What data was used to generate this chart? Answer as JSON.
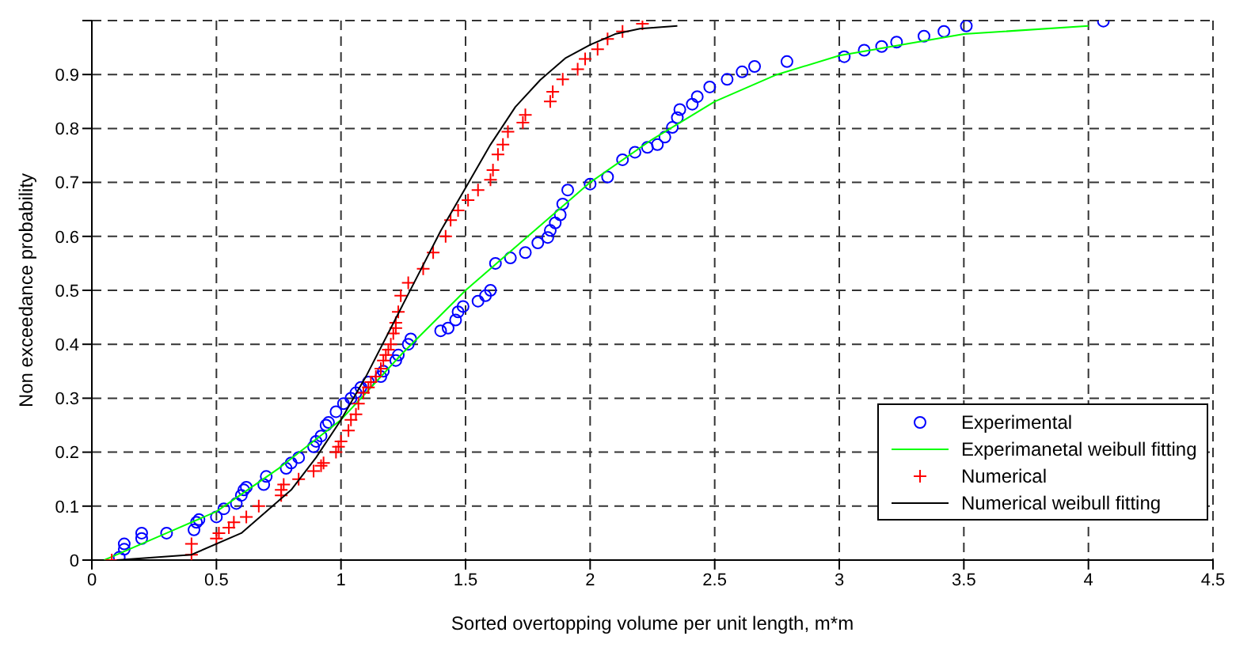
{
  "chart_data": {
    "type": "scatter",
    "xlabel": "Sorted overtopping volume per unit length, m*m",
    "ylabel": "Non exceedance probability",
    "xlim": [
      0,
      4.5
    ],
    "xticks": [
      0,
      0.5,
      1,
      1.5,
      2,
      2.5,
      3,
      3.5,
      4,
      4.5
    ],
    "ylim": [
      0,
      1
    ],
    "yticks": [
      0,
      0.1,
      0.2,
      0.3,
      0.4,
      0.5,
      0.6,
      0.7,
      0.8,
      0.9,
      {
        "value": 1,
        "label": null
      }
    ],
    "grid": true,
    "legend": "bottom right",
    "series": [
      {
        "name": "Experimental",
        "type": "scatter",
        "marker": "circle",
        "color": "#0000ff",
        "x": [
          0.11,
          0.13,
          0.13,
          0.2,
          0.2,
          0.3,
          0.41,
          0.42,
          0.43,
          0.5,
          0.53,
          0.58,
          0.6,
          0.61,
          0.62,
          0.69,
          0.7,
          0.78,
          0.8,
          0.83,
          0.89,
          0.9,
          0.92,
          0.94,
          0.95,
          0.98,
          1.01,
          1.04,
          1.06,
          1.08,
          1.11,
          1.16,
          1.17,
          1.22,
          1.23,
          1.27,
          1.28,
          1.4,
          1.43,
          1.46,
          1.47,
          1.49,
          1.55,
          1.58,
          1.6,
          1.62,
          1.68,
          1.74,
          1.79,
          1.83,
          1.84,
          1.86,
          1.88,
          1.89,
          1.91,
          2.0,
          2.07,
          2.13,
          2.18,
          2.23,
          2.27,
          2.3,
          2.33,
          2.35,
          2.36,
          2.41,
          2.43,
          2.48,
          2.55,
          2.61,
          2.66,
          2.79,
          3.02,
          3.1,
          3.17,
          3.23,
          3.34,
          3.42,
          3.51,
          4.06
        ],
        "values": [
          0.005,
          0.02,
          0.03,
          0.04,
          0.05,
          0.05,
          0.056,
          0.07,
          0.075,
          0.08,
          0.095,
          0.105,
          0.12,
          0.13,
          0.135,
          0.14,
          0.155,
          0.17,
          0.18,
          0.19,
          0.21,
          0.22,
          0.23,
          0.25,
          0.255,
          0.275,
          0.29,
          0.3,
          0.31,
          0.32,
          0.33,
          0.34,
          0.35,
          0.37,
          0.38,
          0.4,
          0.41,
          0.425,
          0.43,
          0.445,
          0.46,
          0.47,
          0.48,
          0.49,
          0.5,
          0.55,
          0.56,
          0.57,
          0.588,
          0.598,
          0.611,
          0.625,
          0.64,
          0.66,
          0.686,
          0.697,
          0.71,
          0.742,
          0.756,
          0.765,
          0.77,
          0.784,
          0.802,
          0.82,
          0.835,
          0.845,
          0.859,
          0.877,
          0.891,
          0.905,
          0.915,
          0.924,
          0.933,
          0.945,
          0.952,
          0.96,
          0.971,
          0.98,
          0.99,
          0.999
        ]
      },
      {
        "name": "Experimanetal weibull fitting",
        "type": "line",
        "marker": "none",
        "color": "#00ff00",
        "x": [
          0.05,
          0.1,
          0.3,
          0.5,
          0.75,
          1,
          1.25,
          1.5,
          1.75,
          2,
          2.25,
          2.5,
          2.75,
          3,
          3.5,
          4
        ],
        "values": [
          0,
          0.01,
          0.05,
          0.09,
          0.17,
          0.26,
          0.385,
          0.5,
          0.6,
          0.7,
          0.78,
          0.85,
          0.9,
          0.935,
          0.975,
          0.99
        ]
      },
      {
        "name": "Numerical",
        "type": "scatter",
        "marker": "cross",
        "color": "#ff0000",
        "x": [
          0.08,
          0.4,
          0.4,
          0.5,
          0.51,
          0.55,
          0.57,
          0.62,
          0.67,
          0.76,
          0.76,
          0.77,
          0.83,
          0.89,
          0.92,
          0.93,
          0.98,
          0.99,
          1.0,
          1.03,
          1.04,
          1.06,
          1.07,
          1.09,
          1.11,
          1.12,
          1.14,
          1.16,
          1.17,
          1.18,
          1.19,
          1.2,
          1.21,
          1.22,
          1.22,
          1.23,
          1.24,
          1.27,
          1.33,
          1.37,
          1.42,
          1.44,
          1.47,
          1.51,
          1.55,
          1.6,
          1.61,
          1.63,
          1.65,
          1.67,
          1.73,
          1.74,
          1.84,
          1.85,
          1.89,
          1.95,
          1.98,
          2.03,
          2.07,
          2.13,
          2.21
        ],
        "values": [
          0.0,
          0.01,
          0.03,
          0.04,
          0.05,
          0.06,
          0.07,
          0.08,
          0.1,
          0.12,
          0.13,
          0.14,
          0.15,
          0.165,
          0.175,
          0.18,
          0.2,
          0.21,
          0.22,
          0.24,
          0.26,
          0.27,
          0.29,
          0.31,
          0.32,
          0.33,
          0.34,
          0.355,
          0.37,
          0.38,
          0.39,
          0.4,
          0.42,
          0.43,
          0.44,
          0.46,
          0.49,
          0.514,
          0.54,
          0.57,
          0.6,
          0.63,
          0.648,
          0.667,
          0.686,
          0.705,
          0.723,
          0.752,
          0.77,
          0.794,
          0.811,
          0.825,
          0.85,
          0.868,
          0.891,
          0.91,
          0.929,
          0.947,
          0.966,
          0.98,
          0.994
        ]
      },
      {
        "name": "Numerical weibull fitting",
        "type": "line",
        "marker": "none",
        "color": "#000000",
        "x": [
          0.1,
          0.4,
          0.6,
          0.8,
          0.9,
          1.0,
          1.1,
          1.2,
          1.3,
          1.4,
          1.5,
          1.6,
          1.7,
          1.8,
          1.9,
          2.0,
          2.1,
          2.2,
          2.35
        ],
        "values": [
          0,
          0.01,
          0.05,
          0.13,
          0.19,
          0.26,
          0.34,
          0.43,
          0.52,
          0.61,
          0.69,
          0.77,
          0.84,
          0.89,
          0.93,
          0.955,
          0.975,
          0.985,
          0.99
        ]
      }
    ]
  }
}
